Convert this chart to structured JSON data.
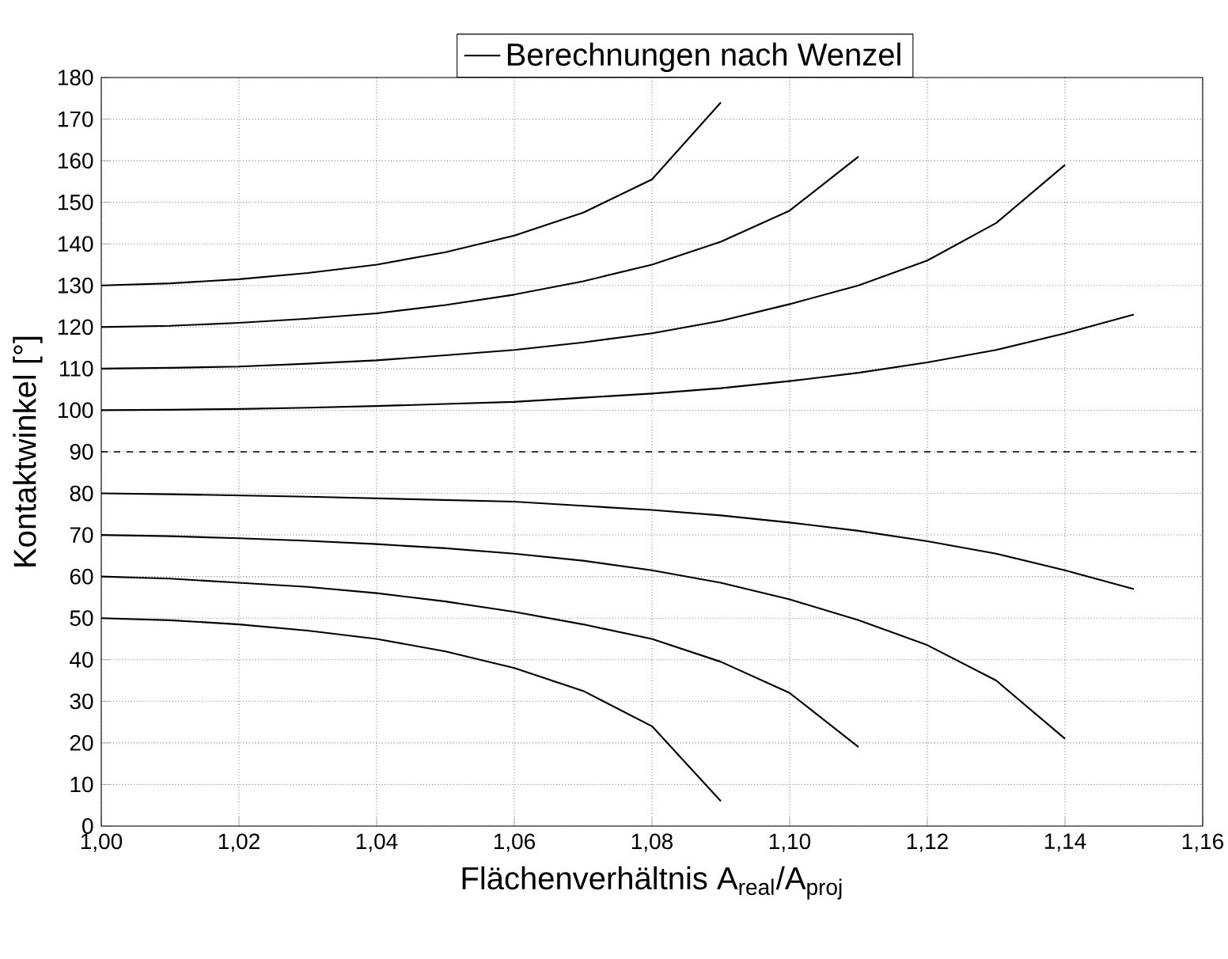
{
  "chart_data": {
    "type": "line",
    "xlabel": "Flächenverhältnis A$_{real}$/A$_{proj}$",
    "ylabel": "Kontaktwinkel [°]",
    "xlim": [
      1.0,
      1.16
    ],
    "ylim": [
      0,
      180
    ],
    "xticks": [
      {
        "value": 1.0,
        "label": "1,00"
      },
      {
        "value": 1.02,
        "label": "1,02"
      },
      {
        "value": 1.04,
        "label": "1,04"
      },
      {
        "value": 1.06,
        "label": "1,06"
      },
      {
        "value": 1.08,
        "label": "1,08"
      },
      {
        "value": 1.1,
        "label": "1,10"
      },
      {
        "value": 1.12,
        "label": "1,12"
      },
      {
        "value": 1.14,
        "label": "1,14"
      },
      {
        "value": 1.16,
        "label": "1,16"
      }
    ],
    "yticks": [
      0,
      10,
      20,
      30,
      40,
      50,
      60,
      70,
      80,
      90,
      100,
      110,
      120,
      130,
      140,
      150,
      160,
      170,
      180
    ],
    "grid": true,
    "legend": "top",
    "marker": "none",
    "line_style": "solid",
    "ref_lines": [
      {
        "axis": "y",
        "value": 90,
        "line_style": "dashed"
      }
    ],
    "series": [
      {
        "name": "Berechnungen nach Wenzel",
        "color": "#000000",
        "x": [
          1.0,
          1.01,
          1.02,
          1.03,
          1.04,
          1.05,
          1.06,
          1.07,
          1.08,
          1.09
        ],
        "values": [
          130,
          130.5,
          131.5,
          133,
          135,
          138,
          142,
          147.5,
          155.5,
          174
        ]
      },
      {
        "color": "#000000",
        "x": [
          1.0,
          1.01,
          1.02,
          1.03,
          1.04,
          1.05,
          1.06,
          1.07,
          1.08,
          1.09,
          1.1,
          1.11
        ],
        "values": [
          120,
          120.3,
          121,
          122,
          123.3,
          125.3,
          127.8,
          131,
          135,
          140.5,
          148,
          161
        ]
      },
      {
        "color": "#000000",
        "x": [
          1.0,
          1.01,
          1.02,
          1.03,
          1.04,
          1.05,
          1.06,
          1.07,
          1.08,
          1.09,
          1.1,
          1.11,
          1.12,
          1.13,
          1.14
        ],
        "values": [
          110,
          110.2,
          110.5,
          111.2,
          112,
          113.2,
          114.5,
          116.3,
          118.5,
          121.5,
          125.5,
          130,
          136,
          145,
          159
        ]
      },
      {
        "color": "#000000",
        "x": [
          1.0,
          1.01,
          1.02,
          1.03,
          1.04,
          1.05,
          1.06,
          1.07,
          1.08,
          1.09,
          1.1,
          1.11,
          1.12,
          1.13,
          1.14,
          1.15
        ],
        "values": [
          100,
          100.1,
          100.3,
          100.6,
          101,
          101.5,
          102,
          103,
          104,
          105.3,
          107,
          109,
          111.5,
          114.5,
          118.5,
          123
        ]
      },
      {
        "color": "#000000",
        "x": [
          1.0,
          1.01,
          1.02,
          1.03,
          1.04,
          1.05,
          1.06,
          1.07,
          1.08,
          1.09,
          1.1,
          1.11,
          1.12,
          1.13,
          1.14,
          1.15
        ],
        "values": [
          80,
          79.8,
          79.5,
          79.2,
          78.8,
          78.4,
          78,
          77,
          76,
          74.7,
          73,
          71,
          68.5,
          65.5,
          61.5,
          57
        ]
      },
      {
        "color": "#000000",
        "x": [
          1.0,
          1.01,
          1.02,
          1.03,
          1.04,
          1.05,
          1.06,
          1.07,
          1.08,
          1.09,
          1.1,
          1.11,
          1.12,
          1.13,
          1.14
        ],
        "values": [
          70,
          69.7,
          69.2,
          68.6,
          67.8,
          66.8,
          65.5,
          63.8,
          61.5,
          58.5,
          54.5,
          49.5,
          43.5,
          35,
          21
        ]
      },
      {
        "color": "#000000",
        "x": [
          1.0,
          1.01,
          1.02,
          1.03,
          1.04,
          1.05,
          1.06,
          1.07,
          1.08,
          1.09,
          1.1,
          1.11
        ],
        "values": [
          60,
          59.5,
          58.5,
          57.5,
          56,
          54,
          51.5,
          48.5,
          45,
          39.5,
          32,
          19
        ]
      },
      {
        "color": "#000000",
        "x": [
          1.0,
          1.01,
          1.02,
          1.03,
          1.04,
          1.05,
          1.06,
          1.07,
          1.08,
          1.09
        ],
        "values": [
          50,
          49.5,
          48.5,
          47,
          45,
          42,
          38,
          32.5,
          24,
          6
        ]
      }
    ]
  }
}
